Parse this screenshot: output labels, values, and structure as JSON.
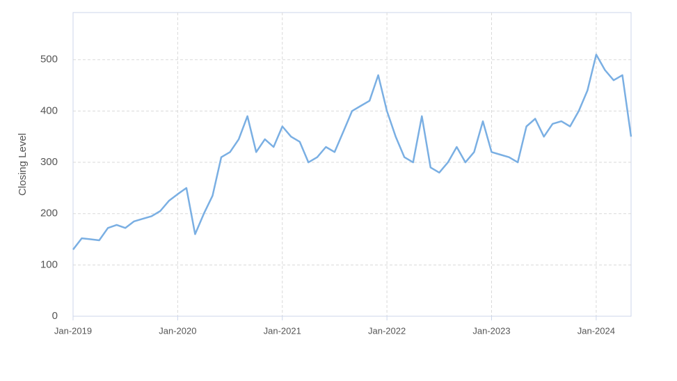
{
  "chart_data": {
    "type": "line",
    "y_label": "Closing Level",
    "x": [
      "2019-01",
      "2019-02",
      "2019-03",
      "2019-04",
      "2019-05",
      "2019-06",
      "2019-07",
      "2019-08",
      "2019-09",
      "2019-10",
      "2019-11",
      "2019-12",
      "2020-01",
      "2020-02",
      "2020-03",
      "2020-04",
      "2020-05",
      "2020-06",
      "2020-07",
      "2020-08",
      "2020-09",
      "2020-10",
      "2020-11",
      "2020-12",
      "2021-01",
      "2021-02",
      "2021-03",
      "2021-04",
      "2021-05",
      "2021-06",
      "2021-07",
      "2021-08",
      "2021-09",
      "2021-10",
      "2021-11",
      "2021-12",
      "2022-01",
      "2022-02",
      "2022-03",
      "2022-04",
      "2022-05",
      "2022-06",
      "2022-07",
      "2022-08",
      "2022-09",
      "2022-10",
      "2022-11",
      "2022-12",
      "2023-01",
      "2023-02",
      "2023-03",
      "2023-04",
      "2023-05",
      "2023-06",
      "2023-07",
      "2023-08",
      "2023-09",
      "2023-10",
      "2023-11",
      "2023-12",
      "2024-01",
      "2024-02",
      "2024-03",
      "2024-04",
      "2024-05"
    ],
    "series": [
      {
        "name": "Closing Level",
        "color": "#7aafe3",
        "values": [
          130,
          152,
          150,
          148,
          172,
          178,
          172,
          185,
          190,
          195,
          205,
          225,
          238,
          250,
          160,
          200,
          235,
          310,
          320,
          345,
          390,
          320,
          345,
          330,
          370,
          350,
          340,
          300,
          310,
          330,
          320,
          360,
          400,
          410,
          420,
          470,
          400,
          350,
          310,
          300,
          390,
          290,
          280,
          300,
          330,
          300,
          320,
          380,
          320,
          315,
          310,
          300,
          370,
          385,
          350,
          375,
          380,
          370,
          400,
          440,
          510,
          480,
          460,
          470,
          350
        ]
      }
    ],
    "xlim": [
      "2019-01",
      "2024-05"
    ],
    "xticks": [
      {
        "value": "2019-01",
        "label": "Jan-2019"
      },
      {
        "value": "2020-01",
        "label": "Jan-2020"
      },
      {
        "value": "2021-01",
        "label": "Jan-2021"
      },
      {
        "value": "2022-01",
        "label": "Jan-2022"
      },
      {
        "value": "2023-01",
        "label": "Jan-2023"
      },
      {
        "value": "2024-01",
        "label": "Jan-2024"
      }
    ],
    "ylim": [
      0,
      592
    ],
    "yticks": [
      0,
      100,
      200,
      300,
      400,
      500
    ],
    "grid": true
  }
}
